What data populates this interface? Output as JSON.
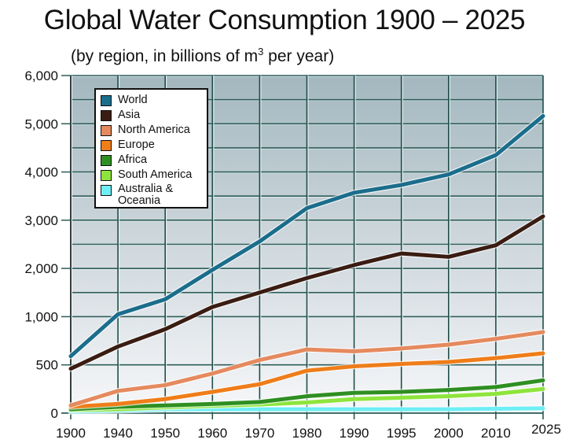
{
  "chart_data": {
    "type": "line",
    "title": "Global Water Consumption 1900 – 2025",
    "subtitle_pre": "(by region, in billions of m",
    "subtitle_sup": "3",
    "subtitle_post": " per year)",
    "xlabel": "",
    "ylabel": "",
    "x": [
      "1900",
      "1940",
      "1950",
      "1960",
      "1970",
      "1980",
      "1990",
      "1995",
      "2000",
      "2010",
      "2025"
    ],
    "y_ticks": [
      0,
      500,
      1000,
      2000,
      3000,
      4000,
      5000,
      6000
    ],
    "y_tick_labels": [
      "0",
      "500",
      "1,000",
      "2,000",
      "3,000",
      "4,000",
      "5,000",
      "6,000"
    ],
    "ylim": [
      0,
      6000
    ],
    "y_scale_note": "non-linear axis: tick labels equally spaced",
    "grid": true,
    "legend_position": "top-left",
    "series": [
      {
        "name": "World",
        "color": "#1b6d8c",
        "values": [
          590,
          1050,
          1360,
          1970,
          2560,
          3250,
          3570,
          3730,
          3950,
          4350,
          5160
        ]
      },
      {
        "name": "Asia",
        "color": "#3a1c12",
        "values": [
          460,
          690,
          870,
          1200,
          1500,
          1800,
          2070,
          2310,
          2240,
          2480,
          3080
        ]
      },
      {
        "name": "North America",
        "color": "#e58a5e",
        "values": [
          80,
          230,
          290,
          410,
          550,
          660,
          640,
          670,
          710,
          770,
          840
        ]
      },
      {
        "name": "Europe",
        "color": "#ef7d19",
        "values": [
          65,
          95,
          145,
          220,
          300,
          440,
          485,
          510,
          530,
          570,
          620
        ]
      },
      {
        "name": "Africa",
        "color": "#2f8f22",
        "values": [
          40,
          65,
          80,
          95,
          115,
          175,
          210,
          220,
          240,
          270,
          340
        ]
      },
      {
        "name": "South America",
        "color": "#8ee43c",
        "values": [
          30,
          40,
          60,
          75,
          90,
          110,
          145,
          160,
          175,
          200,
          250
        ]
      },
      {
        "name": "Australia & Oceania",
        "color": "#6eeef5",
        "values": [
          15,
          25,
          40,
          40,
          40,
          40,
          40,
          40,
          40,
          45,
          50
        ]
      }
    ],
    "legend": [
      {
        "label": "World",
        "color": "#1b6d8c"
      },
      {
        "label": "Asia",
        "color": "#3a1c12"
      },
      {
        "label": "North America",
        "color": "#e58a5e"
      },
      {
        "label": "Europe",
        "color": "#ef7d19"
      },
      {
        "label": "Africa",
        "color": "#2f8f22"
      },
      {
        "label": "South America",
        "color": "#8ee43c"
      },
      {
        "label": "Australia &",
        "label2": "Oceania",
        "color": "#6eeef5"
      }
    ]
  }
}
